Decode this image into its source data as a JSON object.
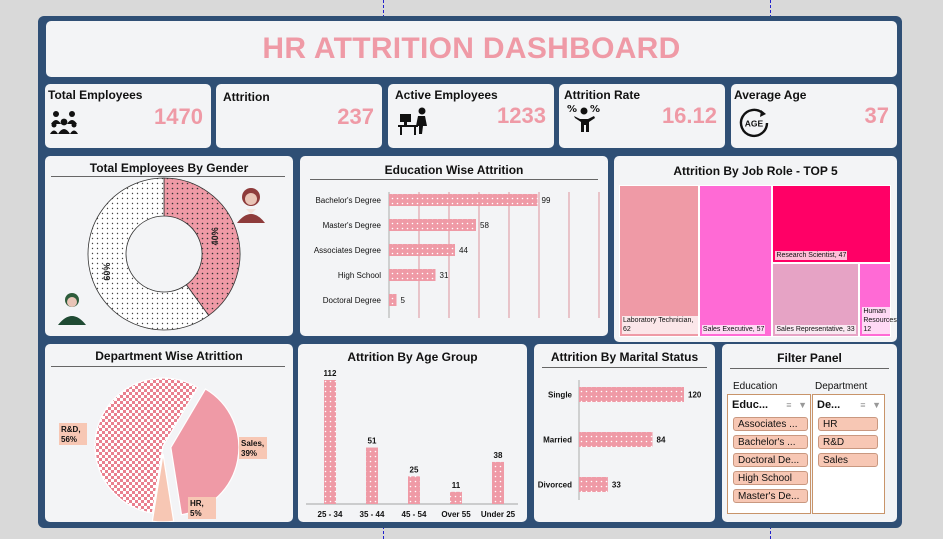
{
  "title": "HR ATTRITION DASHBOARD",
  "colors": {
    "accent": "#ef9aa6",
    "frame": "#2f4f75",
    "panel": "#f3f4f6",
    "chip": "#f7c7b4"
  },
  "kpis": {
    "total_employees": {
      "label": "Total Employees",
      "value": "1470",
      "icon": "people-group-icon"
    },
    "attrition": {
      "label": "Attrition",
      "value": "237"
    },
    "active_employees": {
      "label": "Active Employees",
      "value": "1233",
      "icon": "person-at-desk-icon"
    },
    "attrition_rate": {
      "label": "Attrition Rate",
      "value": "16.12",
      "icon": "person-percent-icon"
    },
    "average_age": {
      "label": "Average Age",
      "value": "37",
      "icon": "age-refresh-icon",
      "icon_text": "AGE"
    }
  },
  "gender_panel": {
    "title": "Total Employees By Gender"
  },
  "education_panel": {
    "title": "Education Wise Attrition"
  },
  "jobrole_panel": {
    "title": "Attrition By Job Role - TOP  5"
  },
  "department_panel": {
    "title": "Department Wise Atrittion"
  },
  "age_panel": {
    "title": "Attrition By Age Group"
  },
  "marital_panel": {
    "title": "Attrition By Marital Status"
  },
  "filter_panel": {
    "title": "Filter Panel",
    "education_label": "Education",
    "department_label": "Department",
    "education_slicer": {
      "title": "Educ...",
      "items": [
        "Associates ...",
        "Bachelor's ...",
        "Doctoral De...",
        "High School",
        "Master's De..."
      ]
    },
    "department_slicer": {
      "title": "De...",
      "items": [
        "HR",
        "R&D",
        "Sales"
      ]
    }
  },
  "chart_data": [
    {
      "type": "pie",
      "variant": "donut",
      "id": "gender",
      "categories": [
        "Female",
        "Male"
      ],
      "values": [
        40,
        60
      ],
      "data_labels": [
        "40%",
        "60%"
      ],
      "colors": [
        "#ef9aa6",
        "#ffffff"
      ]
    },
    {
      "type": "bar",
      "orientation": "horizontal",
      "id": "education",
      "categories": [
        "Bachelor's Degree",
        "Master's Degree",
        "Associates Degree",
        "High School",
        "Doctoral Degree"
      ],
      "values": [
        99,
        58,
        44,
        31,
        5
      ],
      "xlim": [
        0,
        140
      ],
      "grid": true
    },
    {
      "type": "heatmap",
      "variant": "treemap",
      "id": "job_role",
      "categories": [
        "Laboratory Technician",
        "Sales Executive",
        "Research Scientist",
        "Sales Representative",
        "Human Resources"
      ],
      "display_labels": [
        "Laboratory Technician, 62",
        "Sales Executive, 57",
        "Research Scientist, 47",
        "Sales Representative, 33",
        "Human Resources, 12"
      ],
      "values": [
        62,
        57,
        47,
        33,
        12
      ],
      "colors": [
        "#ef9aa6",
        "#ff6ad5",
        "#ff0066",
        "#e6a3c5",
        "#ff6ad5"
      ]
    },
    {
      "type": "pie",
      "id": "department",
      "categories": [
        "R&D",
        "Sales",
        "HR"
      ],
      "values": [
        56,
        39,
        5
      ],
      "data_labels": [
        "R&D,\n56%",
        "Sales,\n39%",
        "HR,\n5%"
      ],
      "colors": [
        "#ef9aa6",
        "#ef9aa6",
        "#f7c7b4"
      ]
    },
    {
      "type": "bar",
      "id": "age_group",
      "categories": [
        "25 - 34",
        "35 - 44",
        "45 - 54",
        "Over 55",
        "Under 25"
      ],
      "values": [
        112,
        51,
        25,
        11,
        38
      ],
      "ylim": [
        0,
        112
      ]
    },
    {
      "type": "bar",
      "orientation": "horizontal",
      "id": "marital",
      "categories": [
        "Single",
        "Married",
        "Divorced"
      ],
      "values": [
        120,
        84,
        33
      ],
      "xlim": [
        0,
        120
      ]
    }
  ]
}
